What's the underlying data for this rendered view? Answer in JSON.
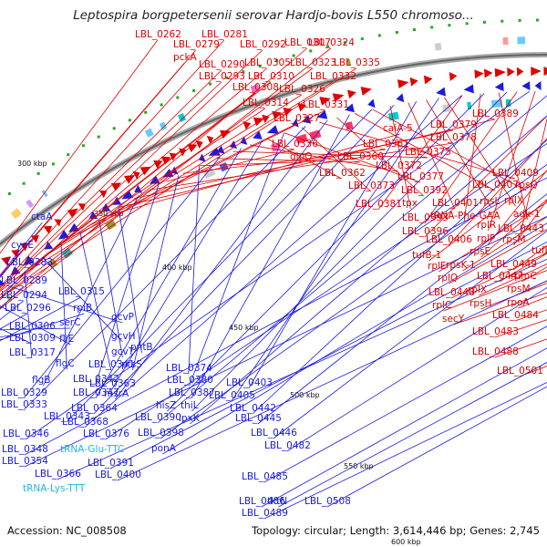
{
  "title": "Leptospira borgpetersenii serovar Hardjo-bovis L550 chromoso...",
  "footer": {
    "accession": "Accession: NC_008508",
    "summary": "Topology: circular; Length: 3,614,446 bp; Genes: 2,745"
  },
  "colors": {
    "forward_strand": "#e00000",
    "reverse_strand": "#1a1ae0",
    "rna_label": "#22b4e0",
    "pink_label": "#ff99cc",
    "backbone": "#888888"
  },
  "scale_ticks": [
    "300 kbp",
    "350 kbp",
    "400 kbp",
    "450 kbp",
    "500 kbp",
    "550 kbp",
    "600 kbp"
  ],
  "forward_labels": [
    "LBL_0262",
    "LBL_0281",
    "LBL_0279",
    "LBL_0292",
    "LBL_0307",
    "LBL_0324",
    "pckA",
    "LBL_0290",
    "LBL_0305",
    "LBL_0323",
    "LBL_0335",
    "LBL_0293",
    "LBL_0310",
    "LBL_0332",
    "LBL_0308",
    "LBL_0326",
    "LBL_0314",
    "LBL_0331",
    "LBL_0327",
    "caiA-5",
    "LBL_0389",
    "LBL_0379",
    "LBL_0378",
    "LBL_0336",
    "LBL_0361",
    "glpQ",
    "LBL_0360",
    "LBL_0375",
    "LBL_0372",
    "LBL_0362",
    "LBL_0377",
    "LBL_0373",
    "LBL_0409",
    "LBL_0392",
    "LBL_0407",
    "rpsQ",
    "tpx",
    "LBL_0401",
    "rpsL",
    "rplX",
    "LBL_0381",
    "tRNA-Phe-GAA",
    "adk-1",
    "LBL_0393",
    "rplR",
    "LBL_0443",
    "LBL_0396",
    "LBL_0406",
    "rplP",
    "rpsM",
    "tufB-1",
    "rpsE",
    "tufB",
    "rplE",
    "rpsK-1",
    "LBL_0449",
    "rplQ",
    "LBL_0447",
    "rpmC",
    "LBL_0448",
    "rplX",
    "rpsM",
    "rplC",
    "rpsH",
    "rpoA",
    "secY",
    "LBL_0484",
    "LBL_0483",
    "LBL_0488",
    "LBL_0501"
  ],
  "reverse_labels": [
    "ctaA",
    "cyoE",
    "LBL_0283",
    "LBL_0289",
    "LBL_0294",
    "LBL_0315",
    "LBL_0296",
    "rpiB",
    "LBL_0306",
    "serC",
    "LBL_0309",
    "fliE",
    "gcvP",
    "LBL_0317",
    "gcvH",
    "flgC",
    "LBL_0341",
    "gcvT",
    "pntB",
    "flgB",
    "LBL_0342",
    "ptsS",
    "LBL_0374",
    "LBL_0329",
    "LBL_0347",
    "LBL_0363",
    "LBL_0380",
    "LBL_0333",
    "msrA",
    "LBL_0387",
    "LBL_0343",
    "LBL_0364",
    "LBL_0403",
    "LBL_0405",
    "LBL_0368",
    "hisZ",
    "thiL",
    "LBL_0346",
    "LBL_0390",
    "lpxK",
    "LBL_0442",
    "LBL_0376",
    "LBL_0398",
    "LBL_0445",
    "LBL_0348",
    "LBL_0446",
    "ponA",
    "LBL_0354",
    "LBL_0391",
    "LBL_0482",
    "LBL_0366",
    "LBL_0400",
    "LBL_0485",
    "LBL_0486",
    "tktN",
    "LBL_0508",
    "LBL_0489"
  ],
  "rna_labels": [
    "tRNA-Glu-TTC",
    "tRNA-Lys-TTT"
  ]
}
